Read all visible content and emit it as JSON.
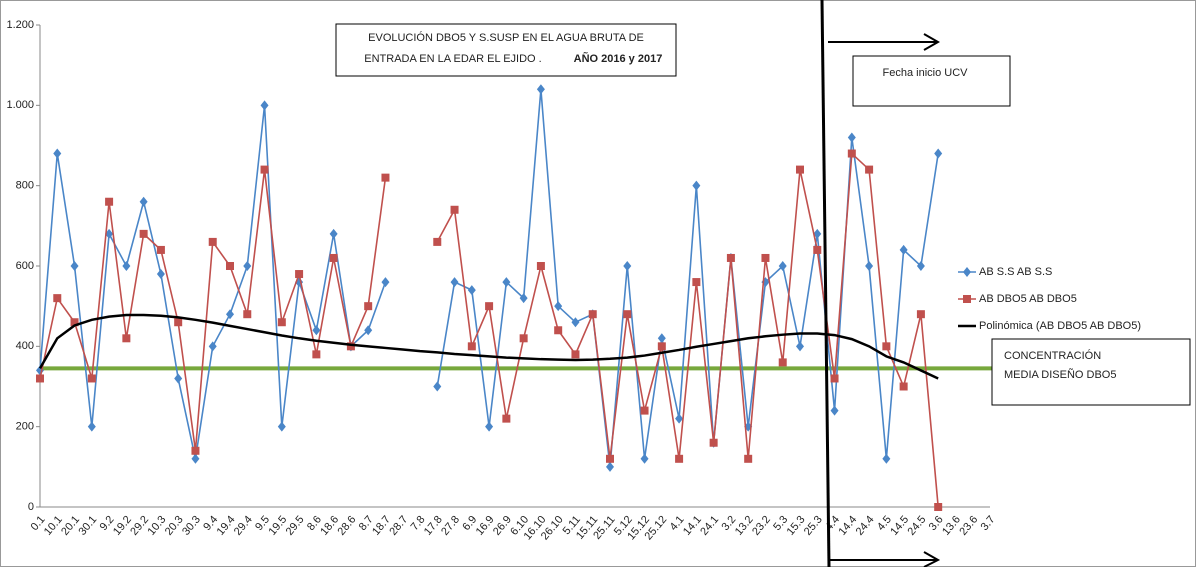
{
  "chart_data": {
    "type": "line",
    "title_lines": [
      "EVOLUCIÓN DBO5 Y S.SUSP EN EL AGUA BRUTA DE",
      "ENTRADA EN LA EDAR EL EJIDO .",
      "AÑO 2016 y 2017"
    ],
    "categories": [
      "0.1",
      "10.1",
      "20.1",
      "30.1",
      "9.2",
      "19.2",
      "29.2",
      "10.3",
      "20.3",
      "30.3",
      "9.4",
      "19.4",
      "29.4",
      "9.5",
      "19.5",
      "29.5",
      "8.6",
      "18.6",
      "28.6",
      "8.7",
      "18.7",
      "28.7",
      "7.8",
      "17.8",
      "27.8",
      "6.9",
      "16.9",
      "26.9",
      "6.10",
      "16.10",
      "26.10",
      "5.11",
      "15.11",
      "25.11",
      "5.12",
      "15.12",
      "25.12",
      "4.1",
      "14.1",
      "24.1",
      "3.2",
      "13.2",
      "23.2",
      "5.3",
      "15.3",
      "25.3",
      "4.4",
      "14.4",
      "24.4",
      "4.5",
      "14.5",
      "24.5",
      "3.6",
      "13.6",
      "23.6",
      "3.7"
    ],
    "series": [
      {
        "name": "AB S.S AB S.S",
        "color": "#4a86c8",
        "marker": "diamond",
        "values": [
          340,
          880,
          600,
          200,
          680,
          600,
          760,
          580,
          320,
          120,
          400,
          480,
          600,
          1000,
          200,
          560,
          440,
          680,
          400,
          440,
          560,
          null,
          null,
          300,
          560,
          540,
          200,
          560,
          520,
          1040,
          500,
          460,
          480,
          100,
          600,
          120,
          420,
          220,
          800,
          160,
          620,
          200,
          560,
          600,
          400,
          680,
          240,
          920,
          600,
          120,
          640,
          600,
          880,
          null,
          null,
          null
        ]
      },
      {
        "name": "AB DBO5 AB DBO5",
        "color": "#c0504d",
        "marker": "square",
        "values": [
          320,
          520,
          460,
          320,
          760,
          420,
          680,
          640,
          460,
          140,
          660,
          600,
          480,
          840,
          460,
          580,
          380,
          620,
          400,
          500,
          820,
          null,
          null,
          660,
          740,
          400,
          500,
          220,
          420,
          600,
          440,
          380,
          480,
          120,
          480,
          240,
          400,
          120,
          560,
          160,
          620,
          120,
          620,
          360,
          840,
          640,
          320,
          880,
          840,
          400,
          300,
          480,
          0,
          null,
          null,
          null
        ]
      },
      {
        "name": "Polinómica (AB DBO5 AB DBO5)",
        "color": "#000000",
        "marker": "none",
        "values": [
          345,
          420,
          452,
          466,
          474,
          478,
          478,
          476,
          472,
          466,
          459,
          451,
          443,
          435,
          427,
          420,
          414,
          409,
          404,
          400,
          396,
          392,
          388,
          385,
          381,
          378,
          375,
          372,
          370,
          368,
          367,
          366,
          367,
          369,
          372,
          377,
          384,
          391,
          399,
          406,
          413,
          420,
          425,
          429,
          432,
          432,
          428,
          418,
          400,
          375,
          360,
          340,
          320,
          null,
          null,
          null
        ]
      }
    ],
    "reference_line": {
      "value": 345,
      "color": "#77a83c",
      "label_lines": [
        "CONCENTRACIÓN",
        "MEDIA DISEÑO DBO5"
      ]
    },
    "annotation": "Fecha inicio UCV",
    "ylim": [
      0,
      1200
    ],
    "yticks": [
      0,
      200,
      400,
      600,
      800,
      {
        "value": 1000,
        "label": "1.000"
      },
      {
        "value": 1200,
        "label": "1.200"
      }
    ],
    "legend_position": "right"
  }
}
